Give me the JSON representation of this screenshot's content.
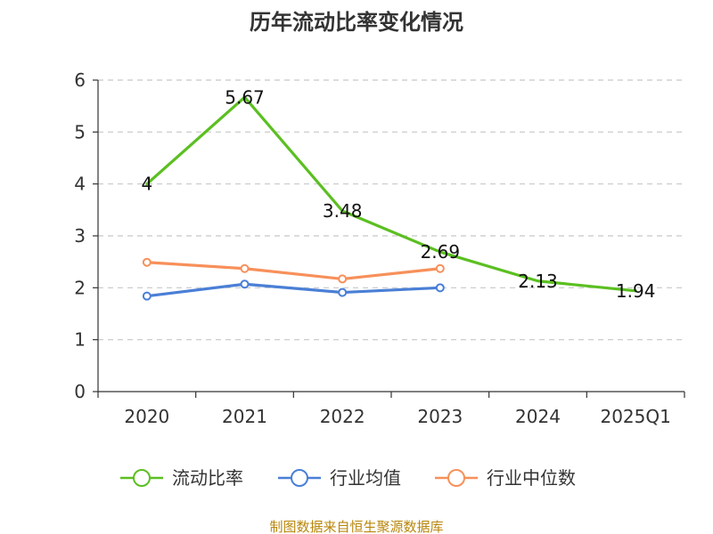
{
  "chart_data": {
    "type": "line",
    "title": "历年流动比率变化情况",
    "categories": [
      "2020",
      "2021",
      "2022",
      "2023",
      "2024",
      "2025Q1"
    ],
    "yticks": [
      "0",
      "1",
      "2",
      "3",
      "4",
      "5",
      "6"
    ],
    "ylim": [
      0,
      6
    ],
    "grid": true,
    "legend_position": "bottom",
    "series": [
      {
        "name": "流动比率",
        "color": "#5bbf21",
        "values": [
          4,
          5.67,
          3.48,
          2.69,
          2.13,
          1.94
        ],
        "labels": [
          "4",
          "5.67",
          "3.48",
          "2.69",
          "2.13",
          "1.94"
        ],
        "show_labels": true,
        "show_markers": false
      },
      {
        "name": "行业均值",
        "color": "#4a7fd6",
        "values": [
          1.84,
          2.07,
          1.91,
          2.0,
          null,
          null
        ],
        "show_labels": false,
        "show_markers": true
      },
      {
        "name": "行业中位数",
        "color": "#f7905a",
        "values": [
          2.49,
          2.37,
          2.17,
          2.37,
          null,
          null
        ],
        "show_labels": false,
        "show_markers": true
      }
    ],
    "source": "制图数据来自恒生聚源数据库"
  }
}
